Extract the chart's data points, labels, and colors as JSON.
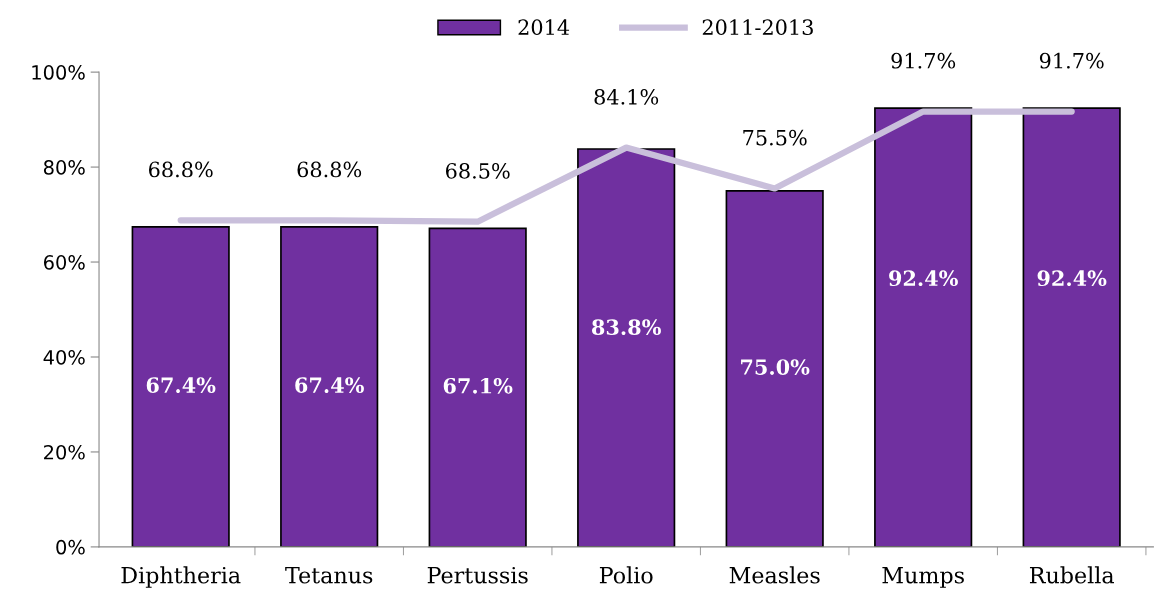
{
  "chart_data": {
    "type": "bar",
    "categories": [
      "Diphtheria",
      "Tetanus",
      "Pertussis",
      "Polio",
      "Measles",
      "Mumps",
      "Rubella"
    ],
    "series": [
      {
        "name": "2014",
        "color": "#7030a0",
        "values": [
          67.4,
          67.4,
          67.1,
          83.8,
          75.0,
          92.4,
          92.4
        ],
        "value_labels": [
          "67.4%",
          "67.4%",
          "67.1%",
          "83.8%",
          "75.0%",
          "92.4%",
          "92.4%"
        ]
      },
      {
        "name": "2011-2013",
        "type": "line",
        "color": "#c9bfdb",
        "values": [
          68.8,
          68.8,
          68.5,
          84.1,
          75.5,
          91.7,
          91.7
        ],
        "value_labels": [
          "68.8%",
          "68.8%",
          "68.5%",
          "84.1%",
          "75.5%",
          "91.7%",
          "91.7%"
        ]
      }
    ],
    "ylim": [
      0,
      100
    ],
    "yticks": [
      {
        "value": 0,
        "label": "0%"
      },
      {
        "value": 20,
        "label": "20%"
      },
      {
        "value": 40,
        "label": "40%"
      },
      {
        "value": 60,
        "label": "60%"
      },
      {
        "value": 80,
        "label": "80%"
      },
      {
        "value": 100,
        "label": "100%"
      }
    ],
    "grid": false,
    "legend": "top",
    "marker": "none",
    "line_style": "solid"
  }
}
